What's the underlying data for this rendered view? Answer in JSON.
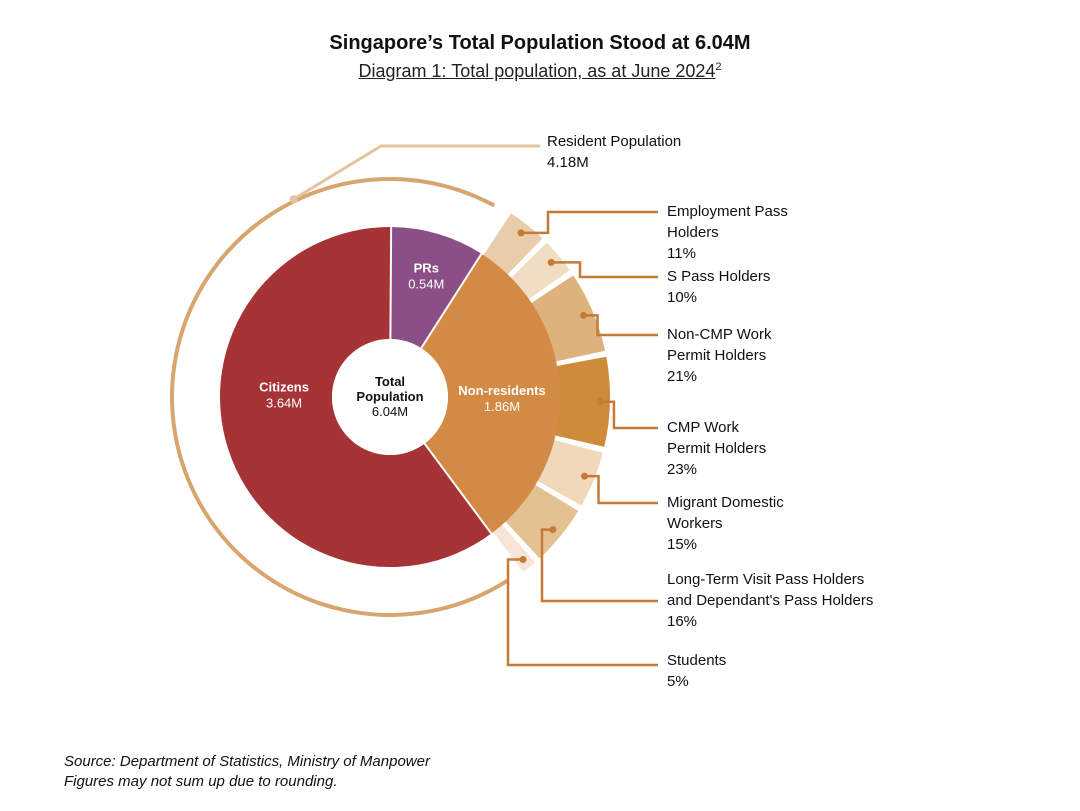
{
  "chart_data": {
    "type": "pie",
    "title": "Singapore’s Total Population Stood at 6.04M",
    "subtitle": "Diagram 1: Total population, as at June 2024",
    "subtitle_footnote": "2",
    "center": {
      "line1": "Total",
      "line2": "Population",
      "value": "6.04M"
    },
    "inner_ring": [
      {
        "name": "Citizens",
        "value": 3.64,
        "value_label": "3.64M",
        "color": "#a63336"
      },
      {
        "name": "PRs",
        "value": 0.54,
        "value_label": "0.54M",
        "color": "#8a4f87"
      },
      {
        "name": "Non-residents",
        "value": 1.86,
        "value_label": "1.86M",
        "color": "#d28a44"
      }
    ],
    "resident_arc": {
      "name": "Resident Population",
      "value_label": "4.18M",
      "color": "#d8a56f"
    },
    "outer_ring": [
      {
        "name": "Employment Pass Holders",
        "lines": [
          "Employment Pass",
          "Holders"
        ],
        "pct": 11,
        "pct_label": "11%",
        "color": "#e9ccaa"
      },
      {
        "name": "S Pass Holders",
        "lines": [
          "S Pass Holders"
        ],
        "pct": 10,
        "pct_label": "10%",
        "color": "#f1ddc2"
      },
      {
        "name": "Non-CMP Work Permit Holders",
        "lines": [
          "Non-CMP Work",
          "Permit Holders"
        ],
        "pct": 21,
        "pct_label": "21%",
        "color": "#ddb27c"
      },
      {
        "name": "CMP Work Permit Holders",
        "lines": [
          "CMP Work",
          "Permit Holders"
        ],
        "pct": 23,
        "pct_label": "23%",
        "color": "#cf8b3c"
      },
      {
        "name": "Migrant Domestic Workers",
        "lines": [
          "Migrant Domestic",
          "Workers"
        ],
        "pct": 15,
        "pct_label": "15%",
        "color": "#f1d8bb"
      },
      {
        "name": "Long-Term Visit Pass Holders and Dependant's Pass Holders",
        "lines": [
          "Long-Term Visit Pass Holders",
          "and Dependant's Pass Holders"
        ],
        "pct": 16,
        "pct_label": "16%",
        "color": "#e3c190"
      },
      {
        "name": "Students",
        "lines": [
          "Students"
        ],
        "pct": 5,
        "pct_label": "5%",
        "color": "#f5e5d7"
      }
    ],
    "leader_color": "#c57a38"
  },
  "footer": {
    "source": "Source: Department of Statistics, Ministry of Manpower",
    "note": "Figures may not sum up due to rounding."
  }
}
